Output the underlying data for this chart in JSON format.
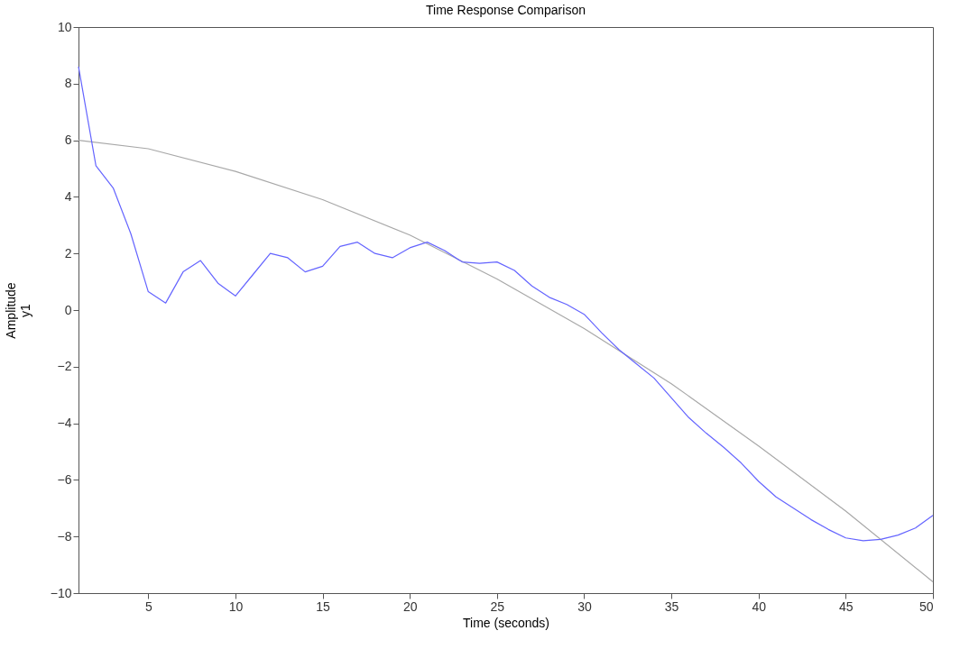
{
  "chart_data": {
    "type": "line",
    "title": "Time Response Comparison",
    "xlabel": "Time (seconds)",
    "ylabel": "Amplitude\ny1",
    "xlim": [
      1,
      50
    ],
    "xticks": [
      5,
      10,
      15,
      20,
      25,
      30,
      35,
      40,
      45,
      50
    ],
    "ylim": [
      -10,
      10
    ],
    "yticks": [
      -10,
      -8,
      -6,
      -4,
      -2,
      0,
      2,
      4,
      6,
      8,
      10
    ],
    "grid": false,
    "legend": false,
    "line_style": "solid",
    "marker": "none",
    "series": [
      {
        "color": "#a8a8a8",
        "x": [
          1,
          5,
          10,
          15,
          20,
          25,
          30,
          35,
          40,
          45,
          50
        ],
        "values": [
          6.0,
          5.7,
          4.9,
          3.9,
          2.65,
          1.1,
          -0.65,
          -2.6,
          -4.8,
          -7.1,
          -9.6
        ]
      },
      {
        "color": "#6464ff",
        "x": [
          1,
          2,
          3,
          4,
          5,
          6,
          7,
          8,
          9,
          10,
          11,
          12,
          13,
          14,
          15,
          16,
          17,
          18,
          19,
          20,
          21,
          22,
          23,
          24,
          25,
          26,
          27,
          28,
          29,
          30,
          31,
          32,
          33,
          34,
          35,
          36,
          37,
          38,
          39,
          40,
          41,
          42,
          43,
          44,
          45,
          46,
          47,
          48,
          49,
          50
        ],
        "values": [
          8.6,
          5.1,
          4.3,
          2.7,
          0.65,
          0.25,
          1.35,
          1.75,
          0.95,
          0.5,
          1.25,
          2.0,
          1.85,
          1.35,
          1.55,
          2.25,
          2.4,
          2.0,
          1.85,
          2.2,
          2.4,
          2.1,
          1.7,
          1.65,
          1.7,
          1.4,
          0.85,
          0.45,
          0.2,
          -0.15,
          -0.8,
          -1.4,
          -1.9,
          -2.4,
          -3.1,
          -3.8,
          -4.35,
          -4.85,
          -5.4,
          -6.05,
          -6.6,
          -7.0,
          -7.4,
          -7.75,
          -8.05,
          -8.15,
          -8.1,
          -7.95,
          -7.7,
          -7.25
        ]
      }
    ]
  }
}
